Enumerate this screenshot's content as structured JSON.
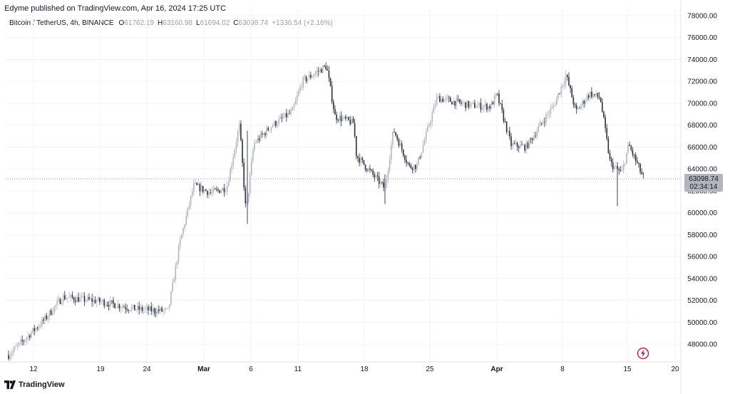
{
  "publisher": "Edyme published on TradingView.com, Apr 16, 2024 17:25 UTC",
  "legend": {
    "symbol": "Bitcoin / TetherUS, 4h, BINANCE",
    "open_key": "O",
    "open": "61762.19",
    "high_key": "H",
    "high": "63160.98",
    "low_key": "L",
    "low": "61694.02",
    "close_key": "C",
    "close": "63098.74",
    "change": "+1336.54 (+2.16%)"
  },
  "price_label": {
    "price": "63098.74",
    "countdown": "02:34:14"
  },
  "footer": {
    "brand": "TradingView",
    "logo_icon": "tradingview-logo-icon"
  },
  "colors": {
    "up_candle": "#b2b5be",
    "down_candle": "#2a2e39",
    "grid": "#f0f3fa",
    "price_tag": "#b2b5be",
    "bolt": "#c2185b"
  },
  "chart_data": {
    "type": "candlestick",
    "interval": "4h",
    "ylim": [
      46500,
      78000
    ],
    "y_ticks": [
      "78000.00",
      "76000.00",
      "74000.00",
      "72000.00",
      "70000.00",
      "68000.00",
      "66000.00",
      "64000.00",
      "62000.00",
      "60000.00",
      "58000.00",
      "56000.00",
      "54000.00",
      "52000.00",
      "50000.00",
      "48000.00"
    ],
    "x_ticks": [
      "12",
      "19",
      "24",
      "Mar",
      "6",
      "11",
      "18",
      "25",
      "Apr",
      "8",
      "15",
      "20"
    ],
    "anchors": [
      {
        "label": "start",
        "value": 47000
      },
      {
        "label": "Feb 13",
        "value": 50200
      },
      {
        "label": "Feb 15",
        "value": 52300
      },
      {
        "label": "Feb 19",
        "value": 51900
      },
      {
        "label": "Feb 22",
        "value": 51200
      },
      {
        "label": "Feb 26",
        "value": 51000
      },
      {
        "label": "Feb 28",
        "value": 57200
      },
      {
        "label": "Feb 29",
        "value": 62500
      },
      {
        "label": "Mar 1",
        "value": 61800
      },
      {
        "label": "Mar 3",
        "value": 62300
      },
      {
        "label": "Mar 5",
        "value": 68000
      },
      {
        "label": "Mar 5 low",
        "value": 60000
      },
      {
        "label": "Mar 6",
        "value": 66300
      },
      {
        "label": "Mar 8",
        "value": 68000
      },
      {
        "label": "Mar 10",
        "value": 69200
      },
      {
        "label": "Mar 11",
        "value": 72000
      },
      {
        "label": "Mar 14",
        "value": 73400
      },
      {
        "label": "Mar 15",
        "value": 68800
      },
      {
        "label": "Mar 17",
        "value": 68200
      },
      {
        "label": "Mar 18",
        "value": 65200
      },
      {
        "label": "Mar 20",
        "value": 62200
      },
      {
        "label": "Mar 21",
        "value": 67600
      },
      {
        "label": "Mar 23",
        "value": 64200
      },
      {
        "label": "Mar 24",
        "value": 64300
      },
      {
        "label": "Mar 26",
        "value": 70500
      },
      {
        "label": "Mar 28",
        "value": 69800
      },
      {
        "label": "Mar 30",
        "value": 69700
      },
      {
        "label": "Apr 1",
        "value": 70800
      },
      {
        "label": "Apr 2",
        "value": 66200
      },
      {
        "label": "Apr 4",
        "value": 66000
      },
      {
        "label": "Apr 6",
        "value": 68500
      },
      {
        "label": "Apr 7",
        "value": 69800
      },
      {
        "label": "Apr 8",
        "value": 72600
      },
      {
        "label": "Apr 10",
        "value": 69200
      },
      {
        "label": "Apr 11",
        "value": 70900
      },
      {
        "label": "Apr 12",
        "value": 70500
      },
      {
        "label": "Apr 13",
        "value": 64500
      },
      {
        "label": "Apr 14",
        "value": 63600
      },
      {
        "label": "Apr 15",
        "value": 66200
      },
      {
        "label": "Apr 16",
        "value": 63098.74
      }
    ],
    "last_price": 63098.74
  }
}
